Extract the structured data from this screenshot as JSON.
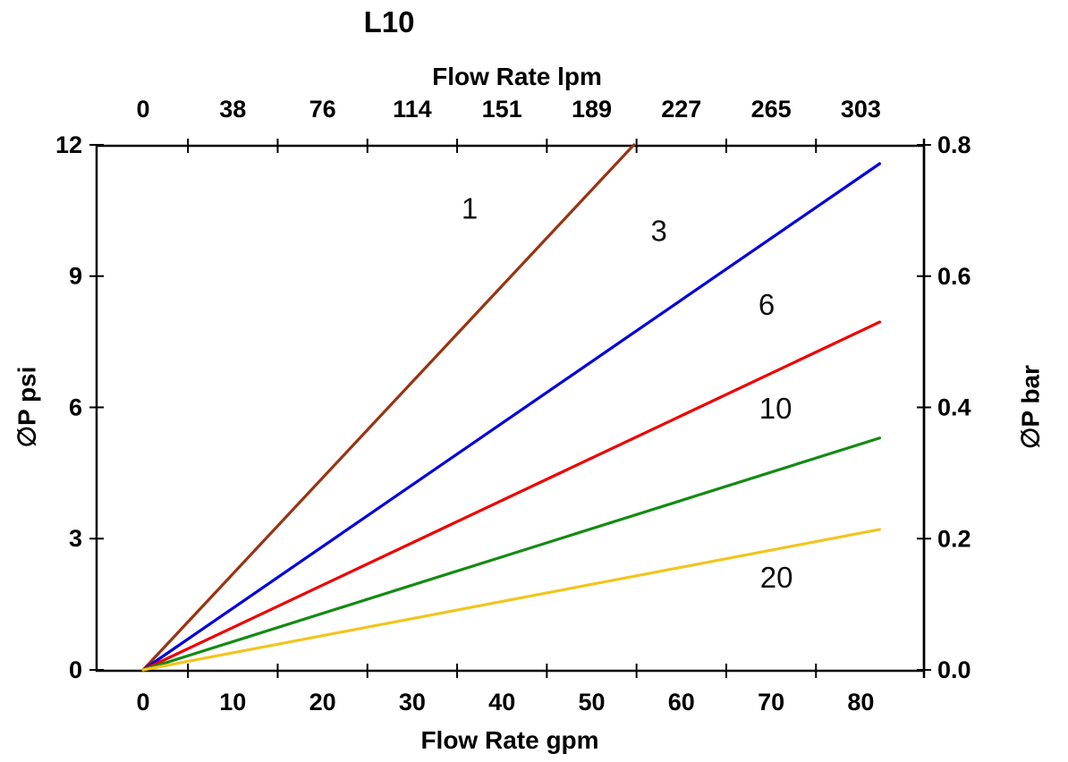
{
  "title": "L10",
  "chart_data": {
    "type": "line",
    "title": "L10",
    "grid": false,
    "legend": "inline-labels",
    "x_axis_bottom": {
      "label": "Flow Rate gpm",
      "tick_labels": [
        0,
        10,
        20,
        30,
        40,
        50,
        60,
        70,
        80
      ],
      "minor_tick_positions_gpm": [
        5,
        15,
        25,
        35,
        45,
        55,
        65,
        75
      ],
      "range_gpm": [
        -5.2,
        87.3
      ]
    },
    "x_axis_top": {
      "label": "Flow Rate lpm",
      "tick_labels": [
        0,
        38,
        76,
        114,
        151,
        189,
        227,
        265,
        303
      ]
    },
    "y_axis_left": {
      "label": "∅P psi",
      "tick_labels": [
        0,
        3,
        6,
        9,
        12
      ],
      "range_psi": [
        0,
        12
      ]
    },
    "y_axis_right": {
      "label": "∅P bar",
      "tick_labels": [
        "0.0",
        "0.2",
        "0.4",
        "0.6",
        "0.8"
      ],
      "range_bar": [
        0.0,
        0.8
      ]
    },
    "axis_color": "#000000",
    "series": [
      {
        "label": "1",
        "color": "#993312",
        "points_gpm_psi": [
          [
            0,
            0
          ],
          [
            54.7,
            12.0
          ]
        ],
        "slope_psi_per_gpm": 0.219,
        "label_at_gpm_psi": [
          36.4,
          10.55
        ]
      },
      {
        "label": "3",
        "color": "#0000DD",
        "points_gpm_psi": [
          [
            0,
            0
          ],
          [
            82.1,
            11.57
          ]
        ],
        "slope_psi_per_gpm": 0.141,
        "label_at_gpm_psi": [
          57.5,
          10.04
        ]
      },
      {
        "label": "6",
        "color": "#EE0000",
        "points_gpm_psi": [
          [
            0,
            0
          ],
          [
            82.1,
            7.95
          ]
        ],
        "slope_psi_per_gpm": 0.0968,
        "label_at_gpm_psi": [
          69.5,
          8.35
        ]
      },
      {
        "label": "10",
        "color": "#148A14",
        "points_gpm_psi": [
          [
            0,
            0
          ],
          [
            82.1,
            5.3
          ]
        ],
        "slope_psi_per_gpm": 0.0645,
        "label_at_gpm_psi": [
          70.5,
          5.98
        ]
      },
      {
        "label": "20",
        "color": "#F2C51D",
        "points_gpm_psi": [
          [
            0,
            0
          ],
          [
            82.1,
            3.21
          ]
        ],
        "slope_psi_per_gpm": 0.0391,
        "label_at_gpm_psi": [
          70.6,
          2.12
        ]
      }
    ]
  }
}
